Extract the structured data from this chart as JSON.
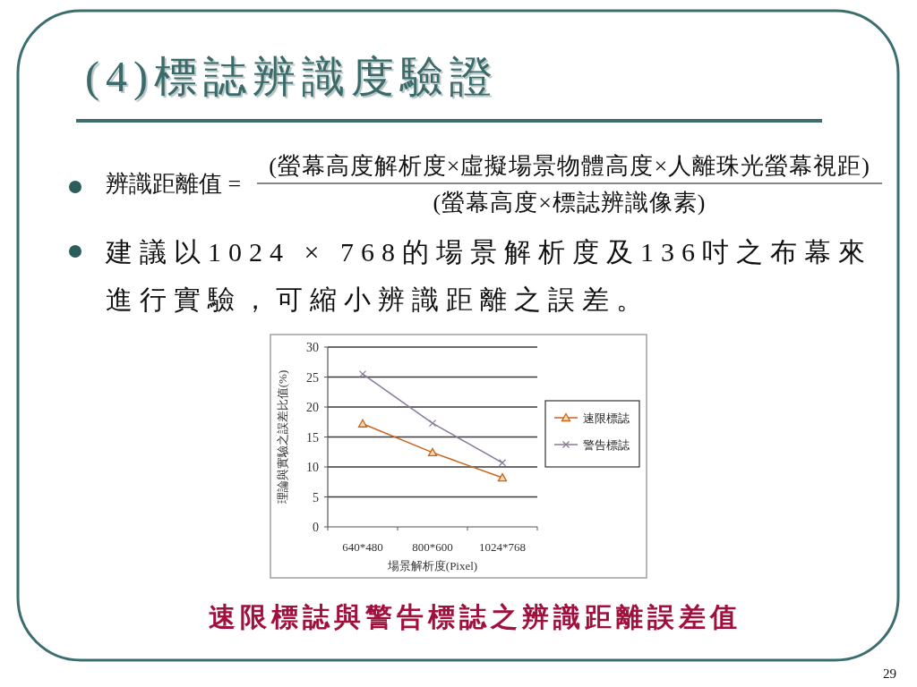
{
  "chart_data": {
    "type": "line",
    "title": "(4)標誌辨識度驗證",
    "annotations": [
      "辨識距離值 =",
      "(螢幕高度解析度×虛擬場景物體高度×人離珠光螢幕視距)",
      "(螢幕高度×標誌辨識像素)",
      "建議以1024 × 768的場景解析度及136吋之布幕來進行實驗，可縮小辨識距離之誤差。",
      "速限標誌與警告標誌之辨識距離誤差值",
      "29"
    ],
    "xlabel": "場景解析度(Pixel)",
    "ylabel": "理論與實驗之誤差比值(%)",
    "categories": [
      "640*480",
      "800*600",
      "1024*768"
    ],
    "series": [
      {
        "name": "速限標誌",
        "color": "#c8641e",
        "marker": "triangle",
        "values": [
          17.2,
          12.4,
          8.2
        ]
      },
      {
        "name": "警告標誌",
        "color": "#8a7a9a",
        "marker": "cross",
        "values": [
          25.5,
          17.3,
          10.7
        ]
      }
    ],
    "ylim": [
      0,
      30
    ],
    "yticks": [
      0,
      5,
      10,
      15,
      20,
      25,
      30
    ],
    "grid": "y",
    "legend": "right"
  }
}
